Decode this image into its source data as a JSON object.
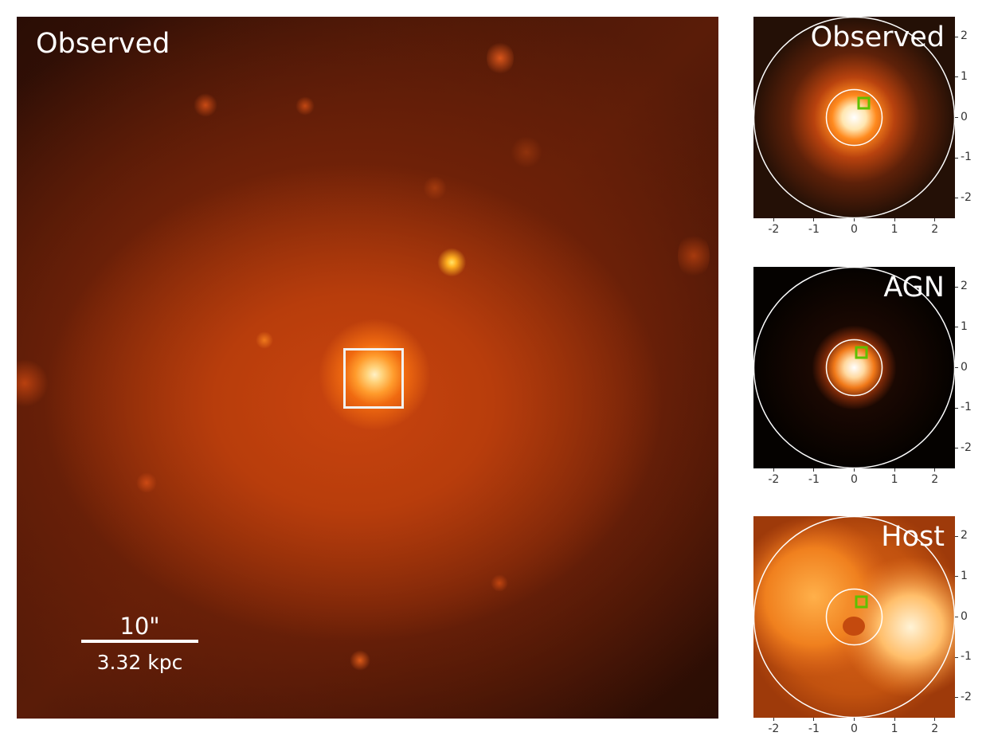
{
  "main_panel": {
    "title": "Observed",
    "scale_bar": {
      "angular": "10\"",
      "physical": "3.32 kpc"
    }
  },
  "panels": [
    {
      "id": "observed",
      "title": "Observed"
    },
    {
      "id": "agn",
      "title": "AGN"
    },
    {
      "id": "host",
      "title": "Host"
    }
  ],
  "axis_ticks": [
    "-2",
    "-1",
    "0",
    "1",
    "2"
  ],
  "colors": {
    "circle": "#ffffff",
    "marker": "#5fc000",
    "zoom_box": "#f2f2f2"
  }
}
